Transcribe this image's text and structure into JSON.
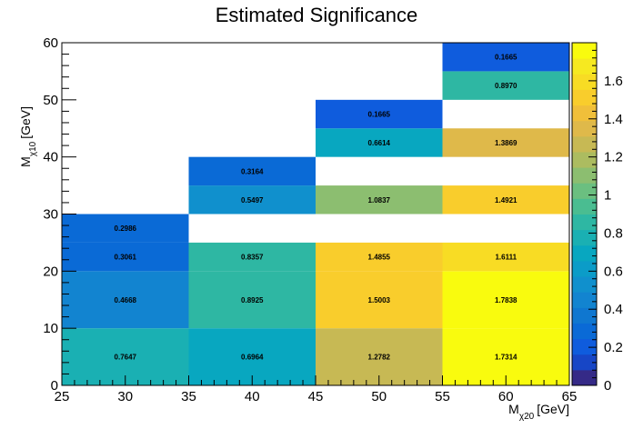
{
  "chart_data": {
    "type": "heatmap",
    "title": "Estimated Significance",
    "xlabel": {
      "main": "M",
      "sub": "χ20",
      "unit": "[GeV]"
    },
    "ylabel": {
      "main": "M",
      "sub": "χ10",
      "unit": "[GeV]"
    },
    "xlim": [
      25,
      65
    ],
    "ylim": [
      0,
      60
    ],
    "x_ticks": [
      25,
      30,
      35,
      40,
      45,
      50,
      55,
      60,
      65
    ],
    "y_ticks": [
      0,
      10,
      20,
      30,
      40,
      50,
      60
    ],
    "z_range": [
      0,
      1.8
    ],
    "colorbar_ticks": [
      0,
      0.2,
      0.4,
      0.6,
      0.8,
      1,
      1.2,
      1.4,
      1.6
    ],
    "colorbar_tick_labels": [
      "0",
      "0.2",
      "0.4",
      "0.6",
      "0.8",
      "1",
      "1.2",
      "1.4",
      "1.6"
    ],
    "palette": [
      "#352a87",
      "#1746c6",
      "#0f5cdd",
      "#0a6ad6",
      "#0f77d0",
      "#1284d0",
      "#1090cd",
      "#0b9cc8",
      "#08a7c0",
      "#1ab0b3",
      "#2eb7a3",
      "#4abd91",
      "#6bbf80",
      "#8cbe70",
      "#acbc60",
      "#c7b954",
      "#dfb94a",
      "#f0bf3a",
      "#f9cd2c",
      "#f8dc24",
      "#f6e920",
      "#f9fb0e"
    ],
    "cells": [
      {
        "x": [
          25,
          35
        ],
        "y": [
          0,
          10
        ],
        "value": 0.7647,
        "label": "0.7647"
      },
      {
        "x": [
          25,
          35
        ],
        "y": [
          10,
          20
        ],
        "value": 0.4668,
        "label": "0.4668"
      },
      {
        "x": [
          25,
          35
        ],
        "y": [
          20,
          25
        ],
        "value": 0.3061,
        "label": "0.3061"
      },
      {
        "x": [
          25,
          35
        ],
        "y": [
          25,
          30
        ],
        "value": 0.2986,
        "label": "0.2986"
      },
      {
        "x": [
          35,
          45
        ],
        "y": [
          0,
          10
        ],
        "value": 0.6964,
        "label": "0.6964"
      },
      {
        "x": [
          35,
          45
        ],
        "y": [
          10,
          20
        ],
        "value": 0.8925,
        "label": "0.8925"
      },
      {
        "x": [
          35,
          45
        ],
        "y": [
          20,
          25
        ],
        "value": 0.8357,
        "label": "0.8357"
      },
      {
        "x": [
          35,
          45
        ],
        "y": [
          30,
          35
        ],
        "value": 0.5497,
        "label": "0.5497"
      },
      {
        "x": [
          35,
          45
        ],
        "y": [
          35,
          40
        ],
        "value": 0.3164,
        "label": "0.3164"
      },
      {
        "x": [
          45,
          55
        ],
        "y": [
          0,
          10
        ],
        "value": 1.2782,
        "label": "1.2782"
      },
      {
        "x": [
          45,
          55
        ],
        "y": [
          10,
          20
        ],
        "value": 1.5003,
        "label": "1.5003"
      },
      {
        "x": [
          45,
          55
        ],
        "y": [
          20,
          25
        ],
        "value": 1.4855,
        "label": "1.4855"
      },
      {
        "x": [
          45,
          55
        ],
        "y": [
          30,
          35
        ],
        "value": 1.0837,
        "label": "1.0837"
      },
      {
        "x": [
          45,
          55
        ],
        "y": [
          40,
          45
        ],
        "value": 0.6614,
        "label": "0.6614"
      },
      {
        "x": [
          45,
          55
        ],
        "y": [
          45,
          50
        ],
        "value": 0.1665,
        "label": "0.1665"
      },
      {
        "x": [
          55,
          65
        ],
        "y": [
          0,
          10
        ],
        "value": 1.7314,
        "label": "1.7314"
      },
      {
        "x": [
          55,
          65
        ],
        "y": [
          10,
          20
        ],
        "value": 1.7838,
        "label": "1.7838"
      },
      {
        "x": [
          55,
          65
        ],
        "y": [
          20,
          25
        ],
        "value": 1.6111,
        "label": "1.6111"
      },
      {
        "x": [
          55,
          65
        ],
        "y": [
          30,
          35
        ],
        "value": 1.4921,
        "label": "1.4921"
      },
      {
        "x": [
          55,
          65
        ],
        "y": [
          40,
          45
        ],
        "value": 1.3869,
        "label": "1.3869"
      },
      {
        "x": [
          55,
          65
        ],
        "y": [
          50,
          55
        ],
        "value": 0.897,
        "label": "0.8970"
      },
      {
        "x": [
          55,
          65
        ],
        "y": [
          55,
          60
        ],
        "value": 0.1665,
        "label": "0.1665"
      }
    ]
  }
}
